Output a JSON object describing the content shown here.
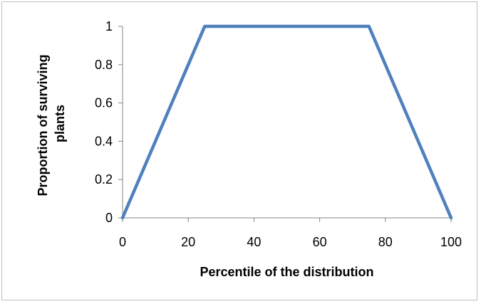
{
  "chart_data": {
    "type": "line",
    "title": "",
    "xlabel": "Percentile of the distribution",
    "ylabel_lines": [
      "Proportion of surviving",
      "plants"
    ],
    "xlim": [
      0,
      100
    ],
    "ylim": [
      0,
      1
    ],
    "x_ticks": [
      "0",
      "20",
      "40",
      "60",
      "80",
      "100"
    ],
    "y_ticks": [
      "0",
      "0.2",
      "0.4",
      "0.6",
      "0.8",
      "1"
    ],
    "grid": false,
    "legend": "none",
    "series": [
      {
        "color": "#4f81bd",
        "x": [
          0,
          25,
          75,
          100
        ],
        "y": [
          0,
          1,
          1,
          0
        ]
      }
    ]
  }
}
